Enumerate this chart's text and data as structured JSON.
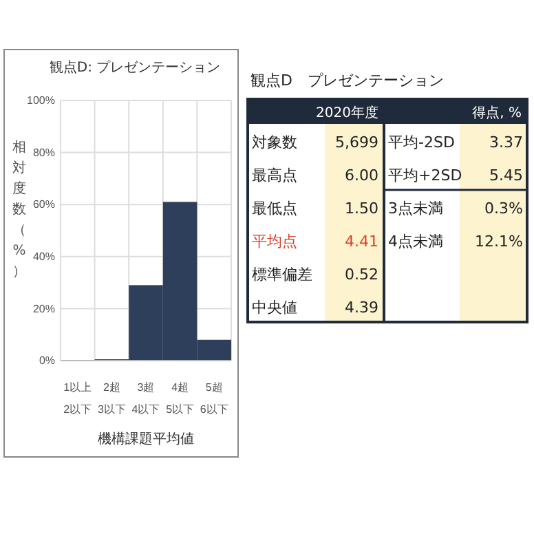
{
  "chart_data": [
    {
      "type": "bar",
      "title": "観点D: プレゼンテーション",
      "categories": [
        "1以上\n2以下",
        "2超\n3以下",
        "3超\n4以下",
        "4超\n5以下",
        "5超\n6以下"
      ],
      "values": [
        0,
        0.5,
        29,
        61,
        8
      ],
      "color": "#2e3f5c",
      "ylim": [
        0,
        100
      ],
      "yticks": [
        {
          "value": 0,
          "label": "0%"
        },
        {
          "value": 20,
          "label": "20%"
        },
        {
          "value": 40,
          "label": "40%"
        },
        {
          "value": 60,
          "label": "60%"
        },
        {
          "value": 80,
          "label": "80%"
        },
        {
          "value": 100,
          "label": "100%"
        }
      ],
      "grid": true,
      "xlabel": "機構課題平均値",
      "ylabel": "相対度数（%）"
    },
    {
      "type": "other",
      "title": "観点D　プレゼンテーション",
      "annotations": [
        "2020年度",
        "得点, %",
        "対象数",
        "5,699",
        "最高点",
        "6.00",
        "最低点",
        "1.50",
        "平均点",
        "4.41",
        "標準偏差",
        "0.52",
        "中央値",
        "4.39",
        "平均-2SD",
        "3.37",
        "平均+2SD",
        "5.45",
        "3点未満",
        "0.3%",
        "4点未満",
        "12.1%"
      ]
    }
  ]
}
